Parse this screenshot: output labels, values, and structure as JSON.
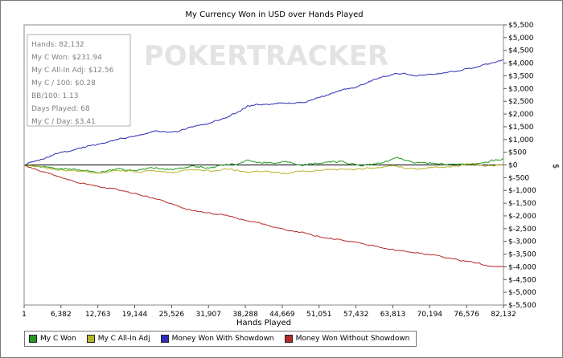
{
  "chart_data": {
    "type": "line",
    "title": "My Currency Won in USD over Hands Played",
    "xlabel": "Hands Played",
    "ylabel": "$",
    "watermark": "POKERTRACKER",
    "x_ticks": [
      "1",
      "6,382",
      "12,763",
      "19,144",
      "25,526",
      "31,907",
      "38,288",
      "44,669",
      "51,051",
      "57,432",
      "63,813",
      "70,194",
      "76,576",
      "82,132"
    ],
    "xlim": [
      1,
      82132
    ],
    "y_ticks": [
      {
        "value": 5500,
        "label": "$5,500"
      },
      {
        "value": 5000,
        "label": "$5,000"
      },
      {
        "value": 4500,
        "label": "$4,500"
      },
      {
        "value": 4000,
        "label": "$4,000"
      },
      {
        "value": 3500,
        "label": "$3,500"
      },
      {
        "value": 3000,
        "label": "$3,000"
      },
      {
        "value": 2500,
        "label": "$2,500"
      },
      {
        "value": 2000,
        "label": "$2,000"
      },
      {
        "value": 1500,
        "label": "$1,500"
      },
      {
        "value": 1000,
        "label": "$1,000"
      },
      {
        "value": 500,
        "label": "$500"
      },
      {
        "value": 0,
        "label": "$0"
      },
      {
        "value": -500,
        "label": "$-500"
      },
      {
        "value": -1000,
        "label": "$-1,000"
      },
      {
        "value": -1500,
        "label": "$-1,500"
      },
      {
        "value": -2000,
        "label": "$-2,000"
      },
      {
        "value": -2500,
        "label": "$-2,500"
      },
      {
        "value": -3000,
        "label": "$-3,000"
      },
      {
        "value": -3500,
        "label": "$-3,500"
      },
      {
        "value": -4000,
        "label": "$-4,000"
      },
      {
        "value": -4500,
        "label": "$-4,500"
      },
      {
        "value": -5000,
        "label": "$-5,000"
      },
      {
        "value": -5500,
        "label": "$-5,500"
      }
    ],
    "ylim": [
      -5500,
      5500
    ],
    "axis_position": "right",
    "grid": false,
    "stats": [
      "Hands: 82,132",
      "My C Won: $231.94",
      "My C All-In Adj: $12.56",
      "My C / 100: $0.28",
      "BB/100: 1.13",
      "Days Played: 68",
      "My C / Day: $3.41"
    ],
    "legend_position": "bottom",
    "series": [
      {
        "name": "My C Won",
        "color": "#1f9a1f",
        "x": [
          1,
          3000,
          6382,
          9500,
          12763,
          16000,
          19144,
          22300,
          25526,
          28700,
          31907,
          35100,
          38288,
          41500,
          44669,
          47800,
          51051,
          54200,
          57432,
          60600,
          63813,
          67000,
          70194,
          73400,
          76576,
          79300,
          82132
        ],
        "y": [
          0,
          -80,
          -150,
          -200,
          -300,
          -150,
          -250,
          -100,
          -150,
          -50,
          -120,
          0,
          150,
          60,
          150,
          0,
          80,
          130,
          -20,
          50,
          250,
          100,
          50,
          0,
          20,
          150,
          230
        ]
      },
      {
        "name": "My C All-In Adj",
        "color": "#b5b52b",
        "x": [
          1,
          3000,
          6382,
          9500,
          12763,
          16000,
          19144,
          22300,
          25526,
          28700,
          31907,
          35100,
          38288,
          41500,
          44669,
          47800,
          51051,
          54200,
          57432,
          60600,
          63813,
          67000,
          70194,
          73400,
          76576,
          79300,
          82132
        ],
        "y": [
          0,
          -100,
          -200,
          -250,
          -350,
          -220,
          -280,
          -200,
          -300,
          -180,
          -250,
          -150,
          -300,
          -250,
          -320,
          -260,
          -230,
          -180,
          -150,
          -100,
          -50,
          -150,
          -100,
          -60,
          40,
          -30,
          13
        ]
      },
      {
        "name": "Money Won With Showdown",
        "color": "#2d2db5",
        "x": [
          1,
          3000,
          6382,
          9500,
          12763,
          16000,
          19144,
          22300,
          25526,
          28700,
          31907,
          35100,
          38288,
          41500,
          44669,
          47800,
          51051,
          54200,
          57432,
          60600,
          63813,
          67000,
          70194,
          73400,
          76576,
          79300,
          82132
        ],
        "y": [
          0,
          250,
          500,
          650,
          800,
          1000,
          1150,
          1300,
          1250,
          1500,
          1650,
          1900,
          2300,
          2400,
          2450,
          2450,
          2700,
          2900,
          3100,
          3400,
          3600,
          3500,
          3550,
          3650,
          3800,
          3950,
          4150
        ]
      },
      {
        "name": "Money Won Without Showdown",
        "color": "#b52a2a",
        "x": [
          1,
          3000,
          6382,
          9500,
          12763,
          16000,
          19144,
          22300,
          25526,
          28700,
          31907,
          35100,
          38288,
          41500,
          44669,
          47800,
          51051,
          54200,
          57432,
          60600,
          63813,
          67000,
          70194,
          73400,
          76576,
          79300,
          82132
        ],
        "y": [
          0,
          -250,
          -500,
          -700,
          -850,
          -950,
          -1150,
          -1300,
          -1550,
          -1800,
          -1900,
          -2000,
          -2200,
          -2350,
          -2550,
          -2650,
          -2850,
          -2950,
          -3050,
          -3200,
          -3350,
          -3450,
          -3550,
          -3700,
          -3800,
          -3950,
          -4000
        ]
      }
    ]
  }
}
